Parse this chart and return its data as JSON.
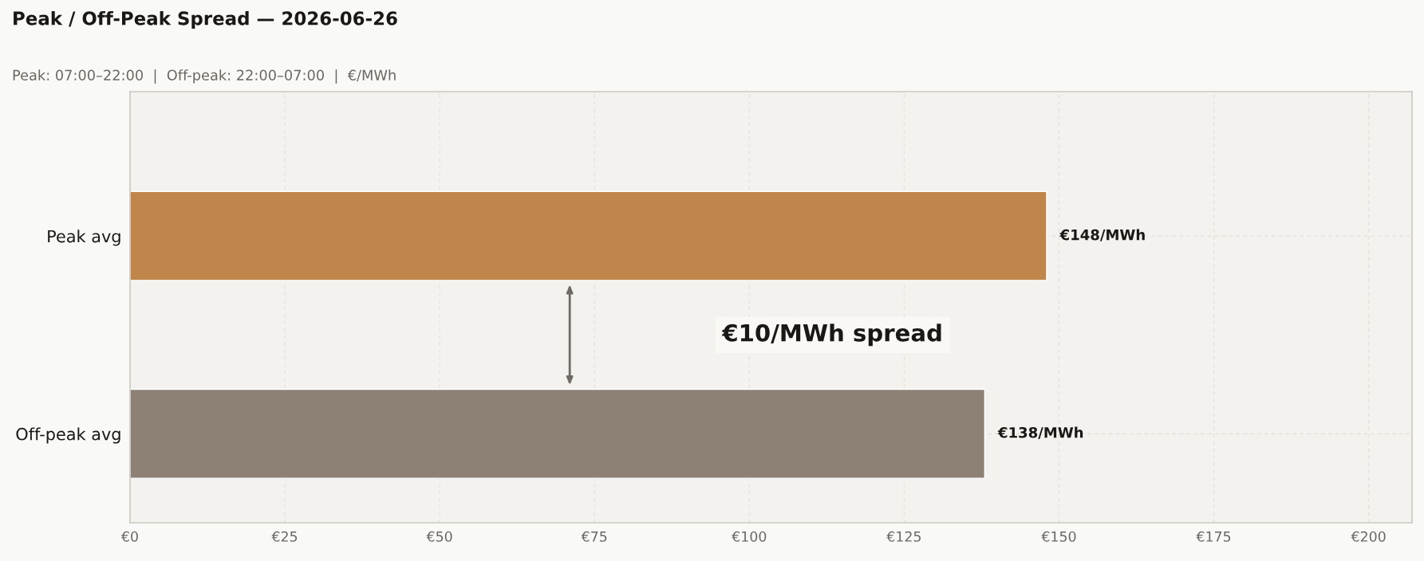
{
  "chart_data": {
    "type": "bar",
    "orientation": "horizontal",
    "title": "Peak / Off-Peak Spread — 2026-06-26",
    "subtitle": "Peak: 07:00–22:00  |  Off-peak: 22:00–07:00  |  €/MWh",
    "categories": [
      "Peak avg",
      "Off-peak avg"
    ],
    "values": [
      148,
      138
    ],
    "colors": [
      "#c0854a",
      "#8c8174"
    ],
    "value_labels": [
      "€148/MWh",
      "€138/MWh"
    ],
    "xlim": [
      0,
      207
    ],
    "xticks": [
      {
        "value": 0,
        "label": "€0"
      },
      {
        "value": 25,
        "label": "€25"
      },
      {
        "value": 50,
        "label": "€50"
      },
      {
        "value": 75,
        "label": "€75"
      },
      {
        "value": 100,
        "label": "€100"
      },
      {
        "value": 125,
        "label": "€125"
      },
      {
        "value": 150,
        "label": "€150"
      },
      {
        "value": 175,
        "label": "€175"
      },
      {
        "value": 200,
        "label": "€200"
      }
    ],
    "grid": true,
    "annotations": [
      "€10/MWh spread"
    ]
  }
}
